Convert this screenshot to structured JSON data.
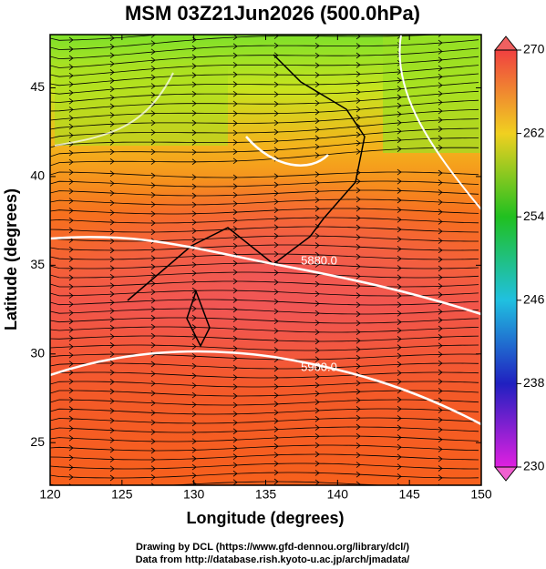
{
  "title": "MSM 03Z21Jun2026 (500.0hPa)",
  "x_axis": {
    "label": "Longitude (degrees)",
    "lim": [
      120,
      150
    ],
    "ticks": [
      120,
      125,
      130,
      135,
      140,
      145,
      150
    ]
  },
  "y_axis": {
    "label": "Latitude  (degrees)",
    "lim": [
      22.6,
      48
    ],
    "ticks": [
      25,
      30,
      35,
      40,
      45
    ]
  },
  "colorbar": {
    "lim": [
      230,
      270
    ],
    "ticks": [
      230,
      238,
      246,
      254,
      262,
      270
    ]
  },
  "contour_labels": [
    "5880.0",
    "5900.0"
  ],
  "footer": [
    "Drawing by DCL (https://www.gfd-dennou.org/library/dcl/)",
    "Data from http://database.rish.kyoto-u.ac.jp/arch/jmadata/"
  ]
}
